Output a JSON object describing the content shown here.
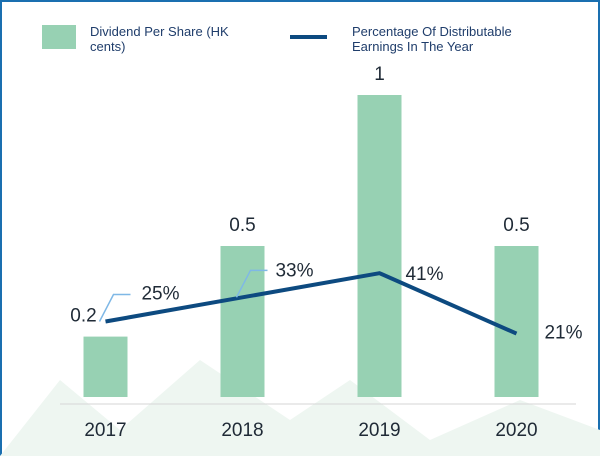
{
  "chart_data": {
    "type": "bar-line",
    "categories": [
      "2017",
      "2018",
      "2019",
      "2020"
    ],
    "series": [
      {
        "name": "Dividend Per Share (HK cents)",
        "type": "bar",
        "color": "#97d1b3",
        "values": [
          0.2,
          0.5,
          1,
          0.5
        ]
      },
      {
        "name": "Percentage Of Distributable Earnings In The Year",
        "type": "line",
        "axis": "y2",
        "color": "#0d4a80",
        "values": [
          25,
          33,
          41,
          21
        ],
        "value_labels": [
          "25%",
          "33%",
          "41%",
          "21%"
        ]
      }
    ],
    "ylim": [
      0,
      1
    ],
    "y2lim": [
      0,
      100
    ]
  }
}
